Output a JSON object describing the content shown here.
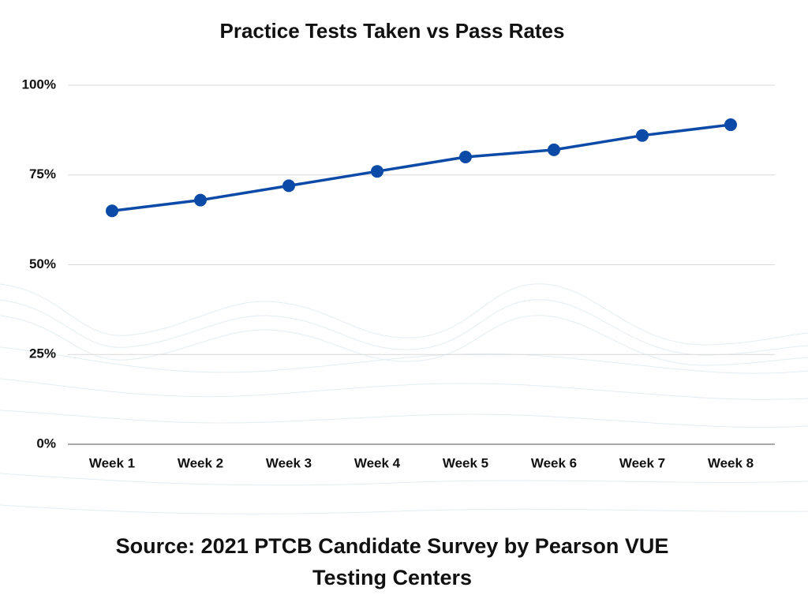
{
  "chart_data": {
    "type": "line",
    "title": "Practice Tests Taken vs Pass Rates",
    "categories": [
      "Week 1",
      "Week 2",
      "Week 3",
      "Week 4",
      "Week 5",
      "Week 6",
      "Week 7",
      "Week 8"
    ],
    "values": [
      65,
      68,
      72,
      76,
      80,
      82,
      86,
      89
    ],
    "color": "#0b4aa6",
    "ylim": [
      0,
      100
    ],
    "yticks": [
      {
        "value": 0,
        "label": "0%"
      },
      {
        "value": 25,
        "label": "25%"
      },
      {
        "value": 50,
        "label": "50%"
      },
      {
        "value": 75,
        "label": "75%"
      },
      {
        "value": 100,
        "label": "100%"
      }
    ],
    "grid": true,
    "source": "Source: 2021 PTCB Candidate Survey by Pearson VUE Testing Centers"
  }
}
